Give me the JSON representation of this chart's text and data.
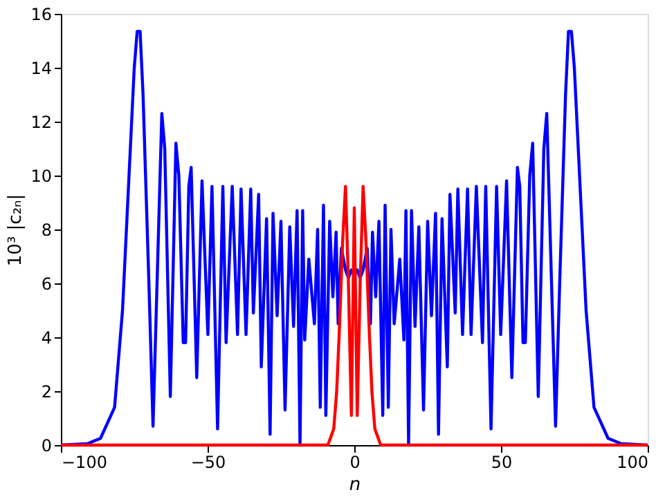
{
  "chart_data": {
    "type": "line",
    "xlabel": "n",
    "ylabel": "10³ |c₂ₙ|",
    "xlim": [
      -100,
      100
    ],
    "ylim": [
      0,
      16
    ],
    "xticks": [
      -100,
      -50,
      0,
      50,
      100
    ],
    "yticks": [
      0,
      2,
      4,
      6,
      8,
      10,
      12,
      14,
      16
    ],
    "grid": false,
    "marker": "none",
    "line_style": "solid",
    "series": [
      {
        "color": "#0000ff",
        "x": [
          -100,
          -91,
          -86.5,
          -81.7,
          -79,
          -77,
          -75,
          -74,
          -73,
          -72,
          -70,
          -68.6,
          -65.6,
          -64.6,
          -62.7,
          -60.8,
          -59.8,
          -58.3,
          -57.5,
          -56.4,
          -55.6,
          -53.7,
          -51.9,
          -49.9,
          -48.5,
          -46.6,
          -44.8,
          -43.7,
          -41.6,
          -39.8,
          -38.6,
          -36.9,
          -35.3,
          -34.4,
          -32.6,
          -31.7,
          -29.9,
          -28.7,
          -27.7,
          -26.3,
          -25,
          -23.6,
          -22,
          -20.7,
          -19.5,
          -18.5,
          -17.6,
          -16.9,
          -15.5,
          -13.6,
          -12.5,
          -11.6,
          -10.5,
          -9.7,
          -8.4,
          -7.3,
          -6.2,
          -5.5,
          -4.4,
          -3,
          -2,
          -1,
          0,
          1,
          2,
          3,
          4.4,
          5.5,
          6.2,
          7.3,
          8.4,
          9.7,
          10.5,
          11.6,
          12.5,
          13.6,
          15.5,
          16.9,
          17.6,
          18.5,
          19.5,
          20.7,
          22,
          23.6,
          25,
          26.3,
          27.7,
          28.7,
          29.9,
          31.7,
          32.6,
          34.4,
          35.3,
          36.9,
          38.6,
          39.8,
          41.6,
          43.7,
          44.8,
          46.6,
          48.5,
          49.9,
          51.9,
          53.7,
          55.6,
          56.4,
          57.5,
          58.3,
          59.8,
          60.8,
          62.7,
          64.6,
          65.6,
          68.6,
          70,
          72,
          73,
          74,
          75,
          77,
          79,
          81.7,
          86.5,
          91,
          100
        ],
        "values": [
          0,
          0.05,
          0.25,
          1.4,
          5,
          9.5,
          14,
          15.35,
          15.35,
          13,
          6,
          0.7,
          12.3,
          11,
          1.8,
          11.2,
          10,
          3.8,
          3.8,
          9.6,
          10.3,
          2.5,
          9.8,
          4.1,
          9.6,
          0.6,
          9.6,
          3.8,
          9.6,
          4.1,
          9.5,
          4.1,
          9.5,
          4.9,
          9.3,
          2.9,
          8.4,
          0.4,
          8.6,
          4.8,
          8.3,
          1.3,
          8.1,
          4.4,
          8.7,
          0,
          8.7,
          3.9,
          6.9,
          4.5,
          8,
          1.4,
          8.9,
          1.1,
          8.3,
          5.5,
          7.9,
          4.5,
          7.3,
          6.5,
          6.2,
          6.5,
          6.3,
          6.5,
          6.2,
          6.5,
          7.3,
          4.5,
          7.9,
          5.5,
          8.3,
          1.1,
          8.9,
          1.4,
          8,
          4.5,
          6.9,
          3.9,
          8.7,
          0,
          8.7,
          4.4,
          8.1,
          1.3,
          8.3,
          4.8,
          8.6,
          0.4,
          8.4,
          2.9,
          9.3,
          4.9,
          9.5,
          4.1,
          9.5,
          4.1,
          9.6,
          3.8,
          9.6,
          0.6,
          9.6,
          4.1,
          9.8,
          2.5,
          10.3,
          9.6,
          3.8,
          3.8,
          10,
          11.2,
          1.8,
          11,
          12.3,
          0.7,
          6,
          13,
          15.35,
          15.35,
          14,
          9.5,
          5,
          1.4,
          0.25,
          0.05,
          0
        ]
      },
      {
        "color": "#ff0000",
        "x": [
          -100,
          -9,
          -7,
          -6,
          -5,
          -4,
          -3,
          -2,
          -1,
          0,
          1,
          2,
          3,
          4,
          5,
          6,
          7,
          9,
          100
        ],
        "values": [
          0,
          0,
          0.6,
          2,
          4.5,
          7.5,
          9.6,
          6,
          1.1,
          8.8,
          1.1,
          6,
          9.6,
          7.5,
          4.5,
          2,
          0.6,
          0,
          0
        ]
      }
    ]
  }
}
